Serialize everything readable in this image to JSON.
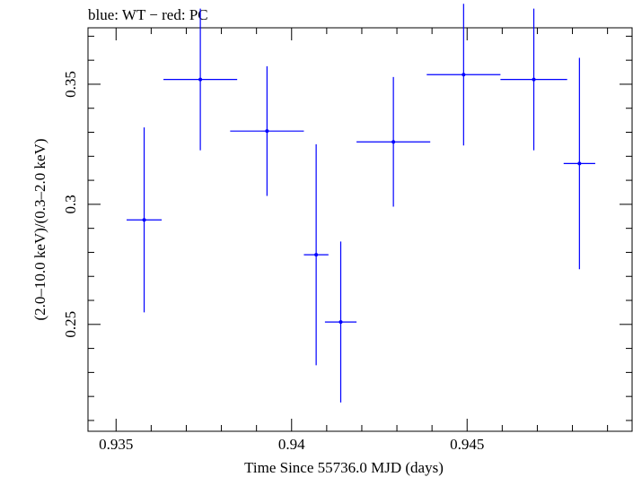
{
  "chart_data": {
    "type": "scatter",
    "title": "blue: WT − red: PC",
    "xlabel": "Time Since 55736.0 MJD (days)",
    "ylabel": "(2.0–10.0 keV)/(0.3–2.0 keV)",
    "xlim": [
      0.9342,
      0.9497
    ],
    "ylim": [
      0.2055,
      0.3735
    ],
    "x_ticks": [
      {
        "value": 0.935,
        "label": "0.935"
      },
      {
        "value": 0.94,
        "label": "0.94"
      },
      {
        "value": 0.945,
        "label": "0.945"
      }
    ],
    "y_ticks": [
      {
        "value": 0.25,
        "label": "0.25"
      },
      {
        "value": 0.3,
        "label": "0.3"
      },
      {
        "value": 0.35,
        "label": "0.35"
      }
    ],
    "x_minor_step": 0.001,
    "y_minor_step": 0.01,
    "series": [
      {
        "color": "#0000ff",
        "points": [
          {
            "x": 0.9358,
            "xerr": 0.0005,
            "y": 0.2935,
            "yerr": 0.0385
          },
          {
            "x": 0.9374,
            "xerr": 0.00105,
            "y": 0.352,
            "yerr": 0.0295
          },
          {
            "x": 0.9393,
            "xerr": 0.00105,
            "y": 0.3305,
            "yerr": 0.027
          },
          {
            "x": 0.9407,
            "xerr": 0.00035,
            "y": 0.279,
            "yerr": 0.046
          },
          {
            "x": 0.9414,
            "xerr": 0.00045,
            "y": 0.251,
            "yerr": 0.0335
          },
          {
            "x": 0.9429,
            "xerr": 0.00105,
            "y": 0.326,
            "yerr": 0.027
          },
          {
            "x": 0.9449,
            "xerr": 0.00105,
            "y": 0.354,
            "yerr": 0.0295
          },
          {
            "x": 0.9469,
            "xerr": 0.00095,
            "y": 0.352,
            "yerr": 0.0295
          },
          {
            "x": 0.9482,
            "xerr": 0.00045,
            "y": 0.317,
            "yerr": 0.044
          }
        ]
      }
    ]
  }
}
